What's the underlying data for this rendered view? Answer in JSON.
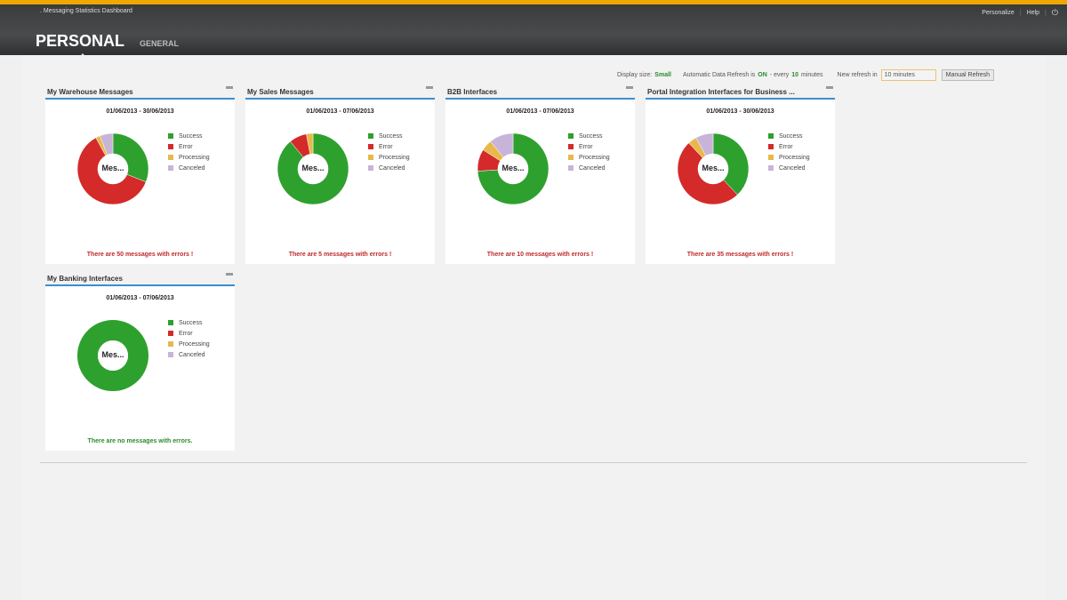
{
  "header": {
    "app_title": ". Messaging Statistics Dashboard",
    "links": [
      "Personalize",
      "Help"
    ],
    "power_icon": "power-icon",
    "tabs": [
      {
        "label": "PERSONAL",
        "active": true
      },
      {
        "label": "GENERAL",
        "active": false
      }
    ]
  },
  "toolbar": {
    "display_size_label": "Display size:",
    "display_size_value": "Small",
    "auto_refresh_label": "Automatic Data Refresh is",
    "auto_refresh_state": "ON",
    "every_label": "- every",
    "interval": "10",
    "minutes_label": "minutes",
    "new_refresh_label": "New refresh in",
    "new_refresh_value": "10 minutes",
    "manual_refresh": "Manual Refresh"
  },
  "legend": [
    "Success",
    "Error",
    "Processing",
    "Canceled"
  ],
  "colors": {
    "success": "#2ea02e",
    "error": "#d42a2a",
    "processing": "#e8b84a",
    "canceled": "#c8b4d8",
    "error_text": "#c0282a",
    "ok_text": "#2a8a2a"
  },
  "center_label": "Mes...",
  "cards": [
    {
      "title": "My Warehouse Messages",
      "date": "01/06/2013 - 30/06/2013",
      "percent": [
        31,
        61,
        2,
        6
      ],
      "message": "There are 50 messages with errors !",
      "ok": false
    },
    {
      "title": "My Sales Messages",
      "date": "01/06/2013 - 07/06/2013",
      "percent": [
        89,
        8,
        3,
        0
      ],
      "message": "There are 5 messages with errors !",
      "ok": false
    },
    {
      "title": "B2B Interfaces",
      "date": "01/06/2013 - 07/06/2013",
      "percent": [
        74,
        10,
        5,
        11
      ],
      "message": "There are 10 messages with errors !",
      "ok": false
    },
    {
      "title": "Portal Integration Interfaces for Business ...",
      "date": "01/06/2013 - 30/06/2013",
      "percent": [
        38,
        50,
        4,
        8
      ],
      "message": "There are 35 messages with errors !",
      "ok": false
    },
    {
      "title": "My Banking Interfaces",
      "date": "01/06/2013 - 07/06/2013",
      "percent": [
        100,
        0,
        0,
        0
      ],
      "message": "There are no messages with errors.",
      "ok": true
    }
  ]
}
